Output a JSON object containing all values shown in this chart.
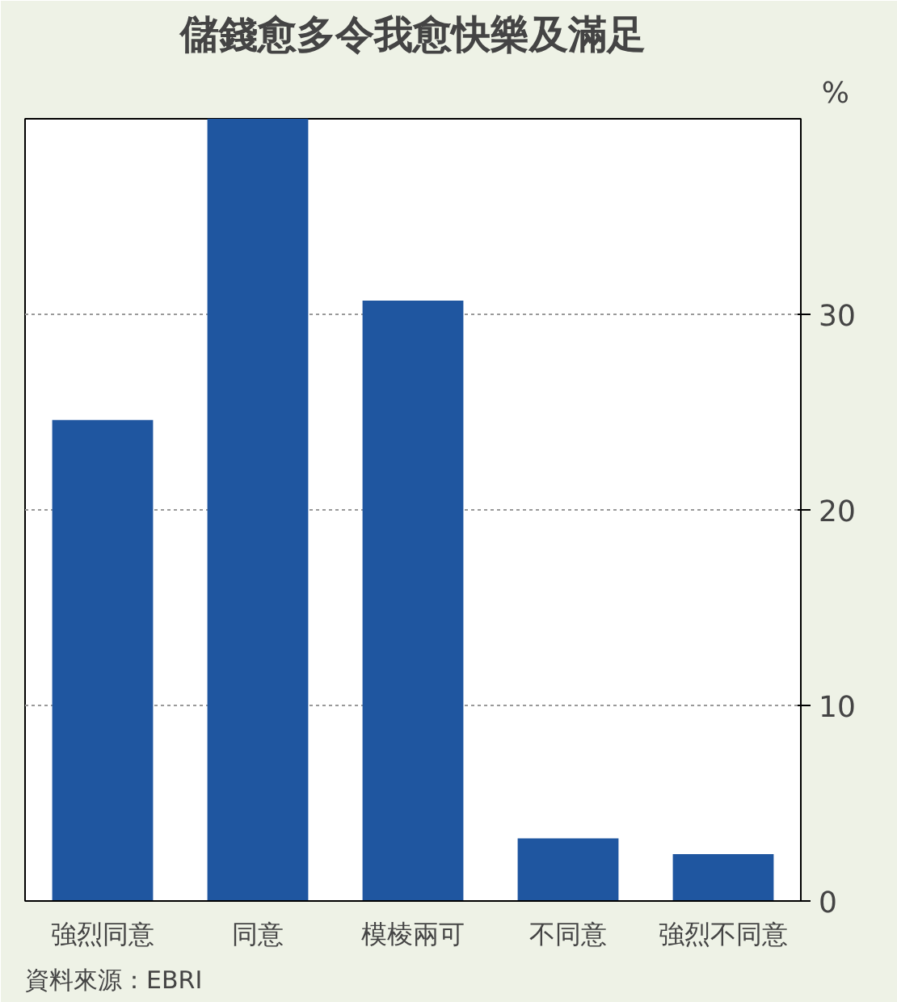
{
  "chart_data": {
    "type": "bar",
    "title": "儲錢愈多令我愈快樂及滿足",
    "ylabel": "%",
    "categories": [
      "強烈同意",
      "同意",
      "模棱兩可",
      "不同意",
      "強烈不同意"
    ],
    "values": [
      24.6,
      40.0,
      30.7,
      3.2,
      2.4
    ],
    "color": "#1f56a0",
    "ylim": [
      0,
      40
    ],
    "yticks": [
      0,
      10,
      20,
      30
    ],
    "grid": "y",
    "annotations": [
      "資料來源：EBRI"
    ]
  }
}
